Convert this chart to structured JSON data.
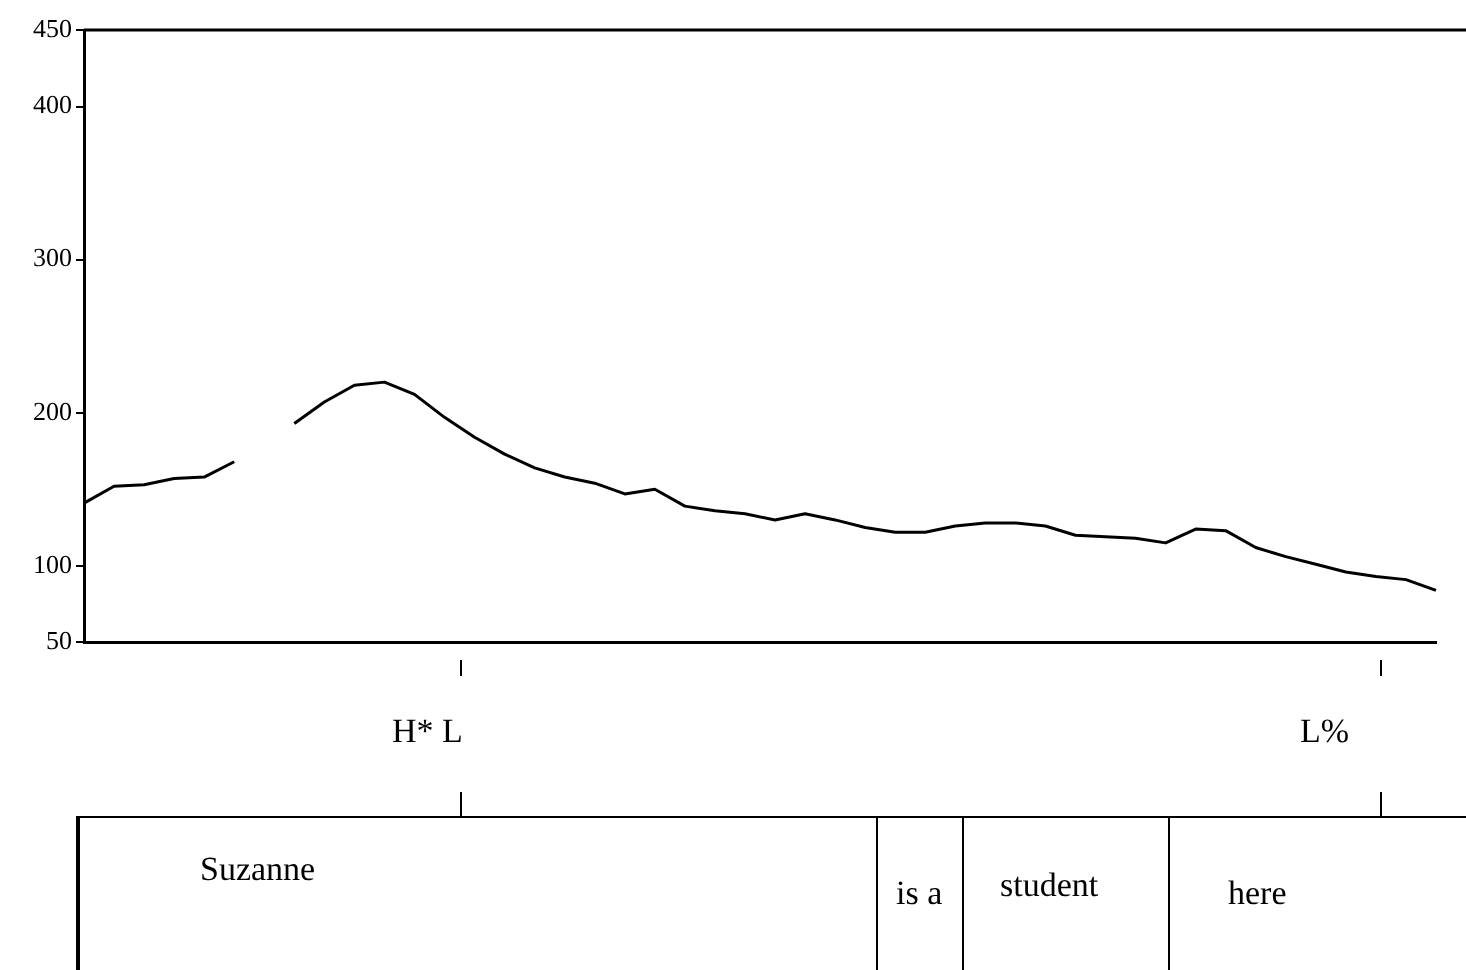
{
  "chart_data": {
    "type": "line",
    "categories": [
      null,
      null,
      null,
      null,
      null,
      null,
      null,
      null,
      null,
      null,
      null,
      null,
      null,
      null,
      null,
      null,
      null,
      null,
      null,
      null,
      null,
      null,
      null,
      null,
      null,
      null,
      null,
      null,
      null,
      null,
      null,
      null,
      null,
      null,
      null,
      null,
      null,
      null,
      null,
      null,
      null,
      null,
      null,
      null,
      null,
      null
    ],
    "series": [
      {
        "color": "#000000",
        "values": [
          141,
          152,
          153,
          157,
          158,
          168,
          null,
          null,
          null,
          null,
          null,
          null,
          null,
          null,
          null,
          null,
          null,
          null,
          null,
          null,
          null,
          null,
          null,
          null,
          null,
          null,
          null,
          null,
          null,
          null,
          null,
          null,
          null,
          null,
          null,
          null,
          null,
          null,
          null,
          null,
          null,
          null,
          null,
          null,
          null,
          null
        ]
      },
      {
        "color": "#000000",
        "values": [
          null,
          null,
          null,
          null,
          null,
          null,
          null,
          193,
          207,
          218,
          220,
          212,
          197,
          184,
          173,
          164,
          158,
          154,
          147,
          150,
          139,
          136,
          134,
          130,
          134,
          130,
          125,
          122,
          122,
          126,
          128,
          128,
          126,
          120,
          119,
          118,
          115,
          124,
          123,
          112,
          106,
          101,
          96,
          93,
          91,
          84
        ]
      }
    ],
    "ylim": [
      50,
      450
    ],
    "yticks": [
      50,
      100,
      200,
      300,
      400,
      450
    ],
    "grid": false,
    "marker": "none",
    "line_style": "solid",
    "tick_labels": "y",
    "annotations": [
      "H* L",
      "L%",
      "Suzanne",
      "is a",
      "student",
      "here"
    ]
  }
}
